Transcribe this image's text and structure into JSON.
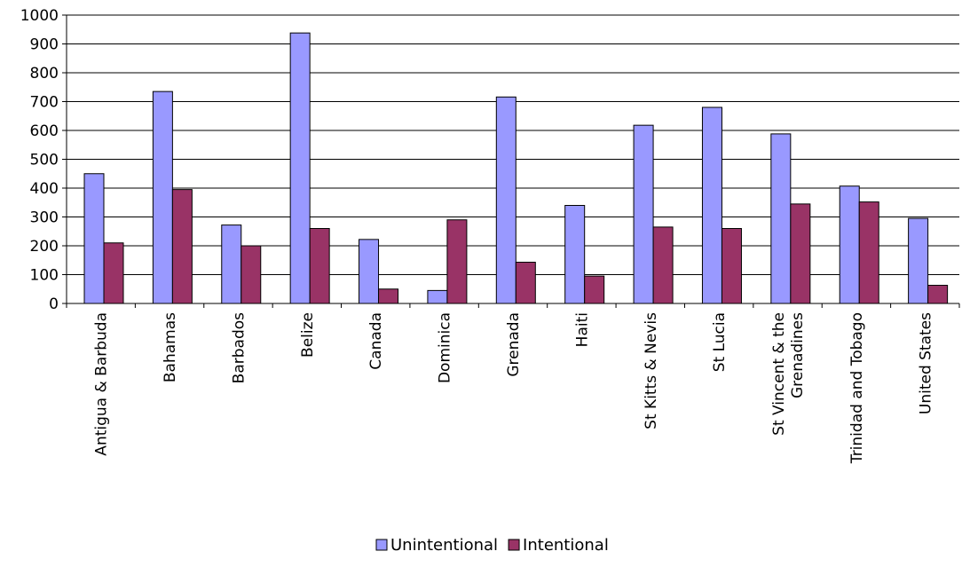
{
  "chart_data": {
    "type": "bar",
    "categories": [
      "Antigua & Barbuda",
      "Bahamas",
      "Barbados",
      "Belize",
      "Canada",
      "Dominica",
      "Grenada",
      "Haiti",
      "St Kitts & Nevis",
      "St Lucia",
      "St Vincent & the Grenadines",
      "Trinidad and Tobago",
      "United States"
    ],
    "series": [
      {
        "name": "Unintentional",
        "color": "#9999ff",
        "values": [
          450,
          735,
          272,
          938,
          222,
          45,
          716,
          340,
          618,
          680,
          588,
          407,
          295
        ]
      },
      {
        "name": "Intentional",
        "color": "#993366",
        "values": [
          210,
          395,
          200,
          260,
          50,
          290,
          143,
          95,
          265,
          260,
          345,
          352,
          63
        ]
      }
    ],
    "title": "",
    "xlabel": "",
    "ylabel": "",
    "ylim": [
      0,
      1000
    ],
    "yticks": [
      "0",
      "100",
      "200",
      "300",
      "400",
      "500",
      "600",
      "700",
      "800",
      "900",
      "1000"
    ],
    "grid": true,
    "legend_position": "bottom"
  }
}
